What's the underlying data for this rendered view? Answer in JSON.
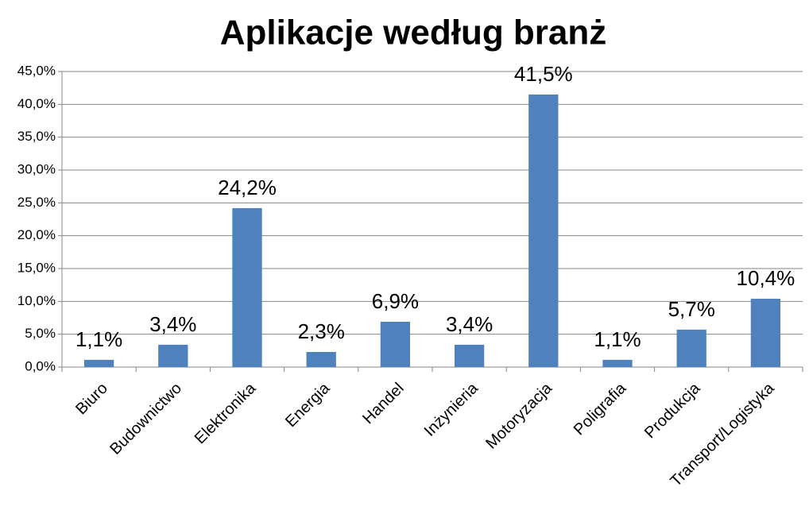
{
  "chart_data": {
    "type": "bar",
    "title": "Aplikacje według branż",
    "categories": [
      "Biuro",
      "Budownictwo",
      "Elektronika",
      "Energia",
      "Handel",
      "Inżynieria",
      "Motoryzacja",
      "Poligrafia",
      "Produkcja",
      "Transport/Logistyka"
    ],
    "values": [
      1.1,
      3.4,
      24.2,
      2.3,
      6.9,
      3.4,
      41.5,
      1.1,
      5.7,
      10.4
    ],
    "value_labels": [
      "1,1%",
      "3,4%",
      "24,2%",
      "2,3%",
      "6,9%",
      "3,4%",
      "41,5%",
      "1,1%",
      "5,7%",
      "10,4%"
    ],
    "color": "#4f81bd",
    "ylim": [
      0,
      45
    ],
    "yticks": [
      {
        "value": 0,
        "label": "0,0%"
      },
      {
        "value": 5,
        "label": "5,0%"
      },
      {
        "value": 10,
        "label": "10,0%"
      },
      {
        "value": 15,
        "label": "15,0%"
      },
      {
        "value": 20,
        "label": "20,0%"
      },
      {
        "value": 25,
        "label": "25,0%"
      },
      {
        "value": 30,
        "label": "30,0%"
      },
      {
        "value": 35,
        "label": "35,0%"
      },
      {
        "value": 40,
        "label": "40,0%"
      },
      {
        "value": 45,
        "label": "45,0%"
      }
    ],
    "grid": true
  }
}
